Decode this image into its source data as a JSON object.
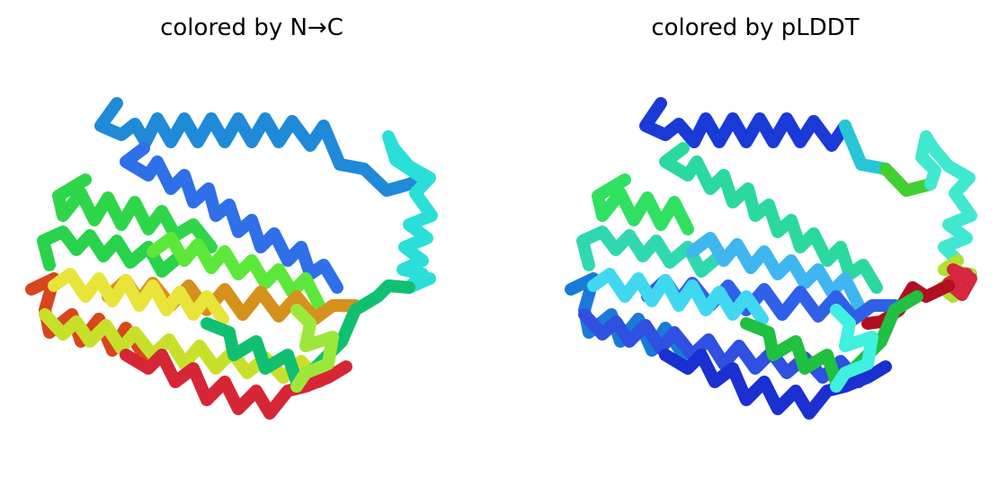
{
  "panels": [
    {
      "title": "colored by N→C",
      "coloring": "rainbow N-terminus (blue) to C-terminus (red)"
    },
    {
      "title": "colored by pLDDT",
      "coloring": "per-residue confidence"
    }
  ],
  "colors": {
    "blue": "#2f6fe8",
    "cyan": "#27c6d6",
    "green": "#2fd64a",
    "lime": "#a8e83a",
    "yellow": "#e8e43a",
    "orange": "#d6901e",
    "red": "#d62636",
    "navy": "#1a2fd0",
    "sky": "#3fc6f0",
    "teal": "#2ad8b0"
  }
}
